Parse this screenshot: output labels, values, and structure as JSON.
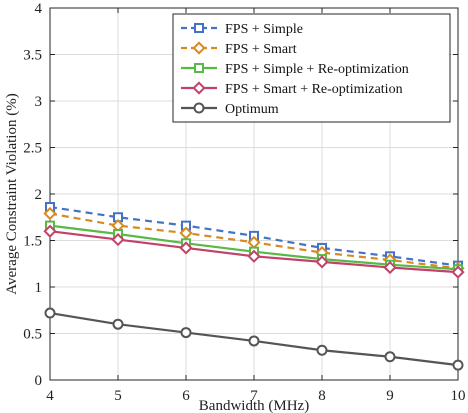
{
  "chart_data": {
    "type": "line",
    "xlabel": "Bandwidth (MHz)",
    "ylabel": "Average Constraint Violation (%)",
    "xlim": [
      4,
      10
    ],
    "ylim": [
      0,
      4
    ],
    "xticks": [
      "4",
      "5",
      "6",
      "7",
      "8",
      "9",
      "10"
    ],
    "yticks": [
      "0",
      "0.5",
      "1",
      "1.5",
      "2",
      "2.5",
      "3",
      "3.5",
      "4"
    ],
    "grid": true,
    "legend_position": "top-right",
    "x": [
      4,
      5,
      6,
      7,
      8,
      9,
      10
    ],
    "series": [
      {
        "name": "FPS + Simple",
        "values": [
          1.86,
          1.75,
          1.66,
          1.55,
          1.42,
          1.33,
          1.23
        ],
        "color": "#4472C4",
        "dash": "dashed",
        "marker": "square"
      },
      {
        "name": "FPS + Smart",
        "values": [
          1.79,
          1.66,
          1.58,
          1.48,
          1.37,
          1.29,
          1.2
        ],
        "color": "#D98A1E",
        "dash": "dashed",
        "marker": "diamond"
      },
      {
        "name": "FPS + Simple + Re-optimization",
        "values": [
          1.66,
          1.57,
          1.47,
          1.38,
          1.3,
          1.24,
          1.19
        ],
        "color": "#58B947",
        "dash": "solid",
        "marker": "square"
      },
      {
        "name": "FPS + Smart + Re-optimization",
        "values": [
          1.6,
          1.51,
          1.42,
          1.33,
          1.27,
          1.21,
          1.16
        ],
        "color": "#C2416A",
        "dash": "solid",
        "marker": "diamond"
      },
      {
        "name": "Optimum",
        "values": [
          0.72,
          0.6,
          0.51,
          0.42,
          0.32,
          0.25,
          0.16
        ],
        "color": "#555555",
        "dash": "solid",
        "marker": "circle"
      }
    ]
  }
}
